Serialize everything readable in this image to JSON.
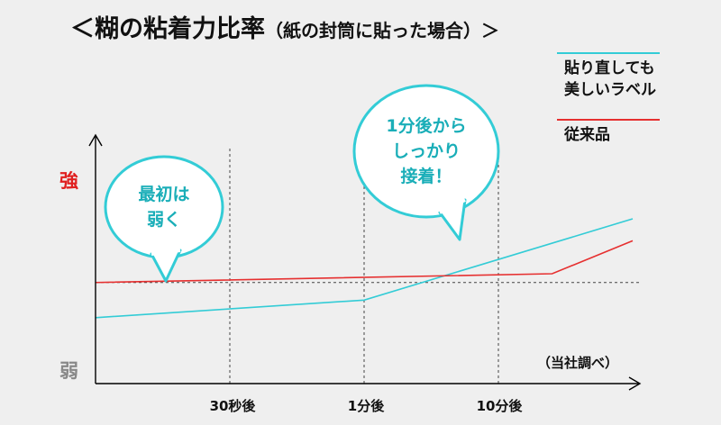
{
  "title": {
    "main": "＜糊の粘着力比率",
    "sub": "（紙の封筒に貼った場合）＞"
  },
  "colors": {
    "new_label": "#33ccd6",
    "conventional": "#e63030",
    "axis": "#000000",
    "bubble_text": "#1aaeb8",
    "strong": "#e02020",
    "weak": "#888888"
  },
  "chart_data": {
    "type": "line",
    "title": "糊の粘着力比率（紙の封筒に貼った場合）",
    "xlabel": "",
    "ylabel": "",
    "y_top_label": "強",
    "y_bottom_label": "弱",
    "x_ticks": [
      {
        "label": "30秒後",
        "x": 30
      },
      {
        "label": "1分後",
        "x": 60
      },
      {
        "label": "10分後",
        "x": 90
      }
    ],
    "xlim": [
      0,
      120
    ],
    "ylim": [
      0,
      100
    ],
    "reference_level": 46,
    "source_note": "（当社調べ）",
    "series": [
      {
        "name": "貼り直しても\n美しいラベル",
        "color": "#33ccd6",
        "points": [
          [
            0,
            30
          ],
          [
            60,
            38
          ],
          [
            120,
            75
          ]
        ]
      },
      {
        "name": "従来品",
        "color": "#e63030",
        "points": [
          [
            0,
            46
          ],
          [
            102,
            50
          ],
          [
            120,
            65
          ]
        ]
      }
    ],
    "annotations": [
      {
        "text": "最初は\n弱く"
      },
      {
        "text": "1分後から\nしっかり\n接着！"
      }
    ]
  }
}
